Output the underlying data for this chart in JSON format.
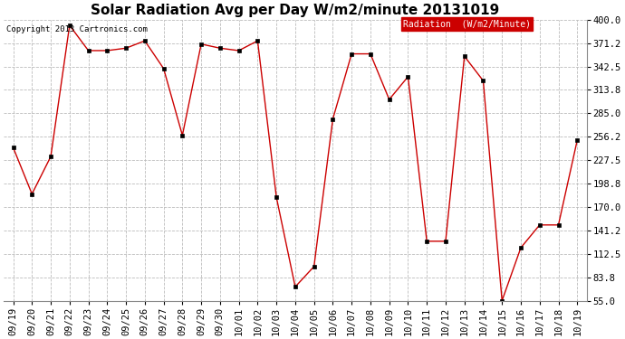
{
  "title": "Solar Radiation Avg per Day W/m2/minute 20131019",
  "copyright": "Copyright 2013 Cartronics.com",
  "legend_label": "Radiation  (W/m2/Minute)",
  "dates": [
    "09/19",
    "09/20",
    "09/21",
    "09/22",
    "09/23",
    "09/24",
    "09/25",
    "09/26",
    "09/27",
    "09/28",
    "09/29",
    "09/30",
    "10/01",
    "10/02",
    "10/03",
    "10/04",
    "10/05",
    "10/06",
    "10/07",
    "10/08",
    "10/09",
    "10/10",
    "10/11",
    "10/12",
    "10/13",
    "10/14",
    "10/15",
    "10/16",
    "10/17",
    "10/18",
    "10/19"
  ],
  "values": [
    243,
    186,
    232,
    393,
    362,
    362,
    365,
    374,
    340,
    258,
    370,
    365,
    362,
    374,
    182,
    72,
    97,
    278,
    358,
    358,
    302,
    330,
    128,
    128,
    355,
    325,
    55,
    120,
    148,
    148,
    252
  ],
  "line_color": "#cc0000",
  "marker_color": "#000000",
  "background_color": "#ffffff",
  "plot_bg_color": "#ffffff",
  "grid_color": "#bbbbbb",
  "title_fontsize": 11,
  "tick_fontsize": 7.5,
  "ylim_min": 55.0,
  "ylim_max": 400.0,
  "yticks": [
    55.0,
    83.8,
    112.5,
    141.2,
    170.0,
    198.8,
    227.5,
    256.2,
    285.0,
    313.8,
    342.5,
    371.2,
    400.0
  ],
  "legend_bg": "#cc0000",
  "legend_text_color": "#ffffff"
}
